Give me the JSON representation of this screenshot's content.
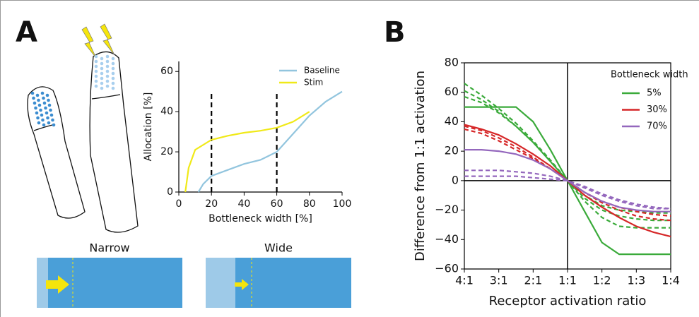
{
  "panels": {
    "a": "A",
    "b": "B"
  },
  "illustration": {
    "narrow": "Narrow",
    "wide": "Wide"
  },
  "chart_data": [
    {
      "type": "line",
      "xlabel": "Bottleneck width [%]",
      "ylabel": "Allocation [%]",
      "xlim": [
        0,
        100
      ],
      "ylim": [
        0,
        65
      ],
      "xticks": [
        0,
        20,
        40,
        60,
        80,
        100
      ],
      "yticks": [
        0,
        20,
        40,
        60
      ],
      "legend": "upper right",
      "vlines": {
        "x": [
          20,
          60
        ],
        "top": 50
      },
      "series": [
        {
          "name": "Baseline",
          "color": "#92c5de",
          "x": [
            12,
            15,
            20,
            30,
            40,
            50,
            60,
            70,
            80,
            90,
            100
          ],
          "values": [
            0,
            4,
            8,
            11,
            14,
            16,
            20,
            29,
            38,
            45,
            50
          ]
        },
        {
          "name": "Stim",
          "color": "#f0e918",
          "x": [
            4,
            6,
            10,
            20,
            30,
            40,
            50,
            60,
            70,
            80
          ],
          "values": [
            0,
            12,
            21,
            26,
            28,
            29.5,
            30.5,
            32,
            35,
            40
          ]
        }
      ]
    },
    {
      "type": "line",
      "xlabel": "Receptor activation ratio",
      "ylabel": "Difference from 1:1 activation",
      "xlim": [
        -3,
        3
      ],
      "ylim": [
        -60,
        80
      ],
      "xticks": [
        {
          "value": -3,
          "label": "4:1"
        },
        {
          "value": -2,
          "label": "3:1"
        },
        {
          "value": -1,
          "label": "2:1"
        },
        {
          "value": 0,
          "label": "1:1"
        },
        {
          "value": 1,
          "label": "1:2"
        },
        {
          "value": 2,
          "label": "1:3"
        },
        {
          "value": 3,
          "label": "1:4"
        }
      ],
      "yticks": [
        {
          "value": -60,
          "label": "−60"
        },
        {
          "value": -40,
          "label": "−40"
        },
        {
          "value": -20,
          "label": "−20"
        },
        0,
        20,
        40,
        60,
        80
      ],
      "reference_lines": {
        "x": 0,
        "y": 0
      },
      "legend_title": "Bottleneck width",
      "legend": "upper right",
      "x": [
        -3,
        -2.5,
        -2,
        -1.5,
        -1,
        -0.5,
        0,
        0.5,
        1,
        1.5,
        2,
        2.5,
        3
      ],
      "series": [
        {
          "name": "5%",
          "color": "#3aaa3a",
          "values": [
            50,
            50,
            50,
            50,
            40,
            21,
            0,
            -21,
            -42,
            -50,
            -50,
            -50,
            -50
          ],
          "dashed_values": [
            [
              66,
              58,
              49,
              39,
              27,
              14,
              0,
              -10,
              -17,
              -20,
              -21,
              -22,
              -22
            ],
            [
              61,
              55,
              47,
              37,
              26,
              13,
              0,
              -12,
              -20,
              -24,
              -26,
              -27,
              -27
            ],
            [
              57,
              53,
              46,
              37,
              26,
              13,
              0,
              -14,
              -25,
              -31,
              -32,
              -32,
              -32
            ]
          ]
        },
        {
          "name": "30%",
          "color": "#d62728",
          "values": [
            38,
            35,
            31,
            25,
            18,
            10,
            0,
            -10,
            -18,
            -25,
            -31,
            -35,
            -38
          ],
          "dashed_values": [
            [
              37,
              34,
              29,
              23,
              16,
              8,
              0,
              -8,
              -15,
              -20,
              -24,
              -26,
              -27
            ],
            [
              35,
              32,
              27,
              21,
              15,
              8,
              0,
              -8,
              -14,
              -18,
              -21,
              -23,
              -24
            ]
          ]
        },
        {
          "name": "70%",
          "color": "#9467bd",
          "values": [
            21,
            21,
            20,
            18,
            14,
            8,
            0,
            -8,
            -14,
            -18,
            -20,
            -21,
            -21
          ],
          "dashed_values": [
            [
              7,
              7,
              7,
              6,
              5,
              3,
              0,
              -5,
              -10,
              -14,
              -17,
              -19,
              -19
            ],
            [
              3,
              3,
              3,
              3,
              2,
              1,
              0,
              -4,
              -9,
              -13,
              -16,
              -18,
              -19
            ]
          ]
        }
      ]
    }
  ]
}
